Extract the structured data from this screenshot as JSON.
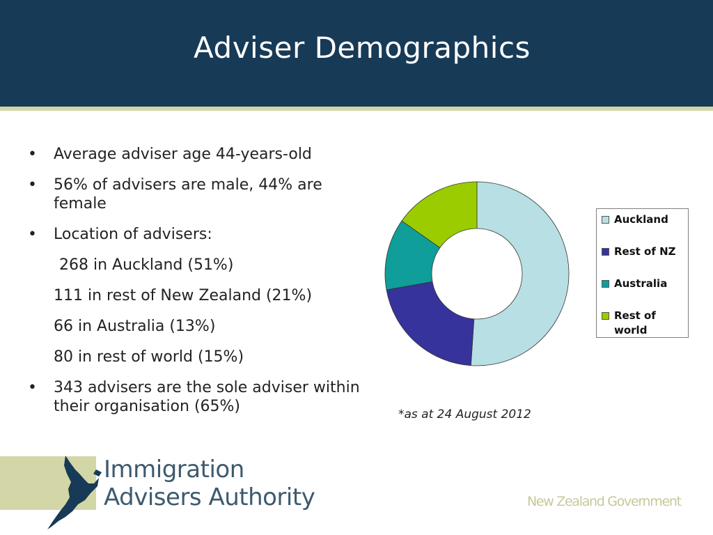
{
  "slide": {
    "title": "Adviser Demographics"
  },
  "bullets": [
    "Average adviser age 44-years-old",
    "56% of advisers are male, 44% are female",
    "Location of advisers:",
    "343 advisers are the sole adviser within their organisation (65%)"
  ],
  "location_lines": [
    "268 in Auckland (51%)",
    "111 in rest of New Zealand (21%)",
    "66 in Australia (13%)",
    "80 in rest of world (15%)"
  ],
  "note": "*as at 24 August 2012",
  "footer": {
    "logo_line1": "Immigration",
    "logo_line2": "Advisers Authority",
    "government": "New Zealand Government"
  },
  "colors": {
    "header": "#173a56",
    "accent_rule": "#d3d6a6",
    "auckland": "#b8dfe3",
    "rest_of_nz": "#36339c",
    "australia": "#0f9e99",
    "rest_of_world": "#9bcc00"
  },
  "chart_data": {
    "type": "pie",
    "variant": "doughnut",
    "categories": [
      "Auckland",
      "Rest of NZ",
      "Australia",
      "Rest of world"
    ],
    "values": [
      268,
      111,
      66,
      80
    ],
    "legend_position": "right"
  }
}
